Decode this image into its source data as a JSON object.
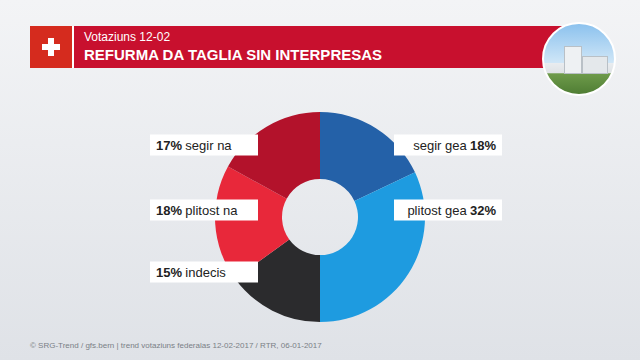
{
  "chart_data": {
    "type": "pie",
    "subtitle": "Votaziuns 12-02",
    "title": "REFURMA DA TAGLIA SIN INTERPRESAS",
    "categories": [
      "segir gea",
      "plitost gea",
      "indecis",
      "plitost na",
      "segir na"
    ],
    "values": [
      18,
      32,
      15,
      18,
      17
    ],
    "value_labels": [
      "18%",
      "32%",
      "15%",
      "18%",
      "17%"
    ],
    "colors": [
      "#2461a8",
      "#1e9be0",
      "#2b2b2d",
      "#e8283a",
      "#b3122b"
    ],
    "data_labels": true,
    "source": "© SRG-Trend / gfs.bern  |  trend votaziuns federalas 12-02-2017 / RTR, 06-01-2017"
  }
}
